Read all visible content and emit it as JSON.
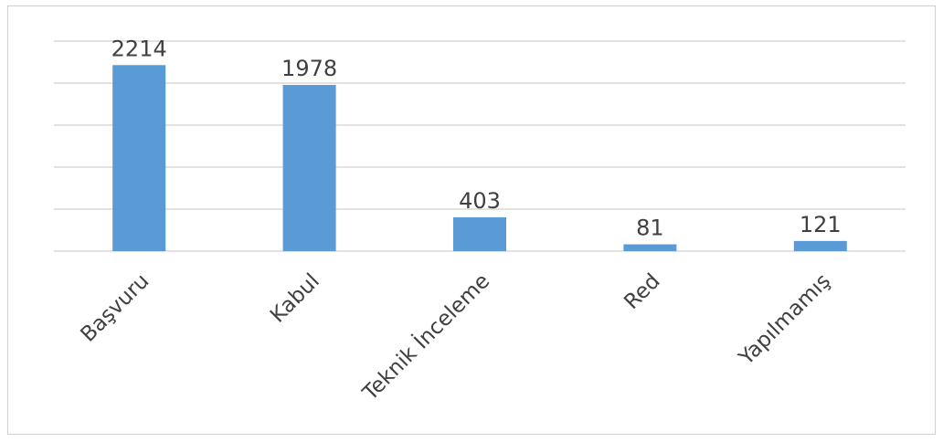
{
  "chart_data": {
    "type": "bar",
    "categories": [
      "Başvuru",
      "Kabul",
      "Teknik İnceleme",
      "Red",
      "Yapılmamış"
    ],
    "values": [
      2214,
      1978,
      403,
      81,
      121
    ],
    "data_labels": [
      "2214",
      "1978",
      "403",
      "81",
      "121"
    ],
    "title": "",
    "xlabel": "",
    "ylabel": "",
    "ylim": [
      0,
      2500
    ],
    "gridlines": [
      0,
      500,
      1000,
      1500,
      2000,
      2500
    ],
    "grid": true,
    "y_tick_labels_shown": false,
    "legend": "none",
    "bar_color": "#5b9bd5"
  }
}
